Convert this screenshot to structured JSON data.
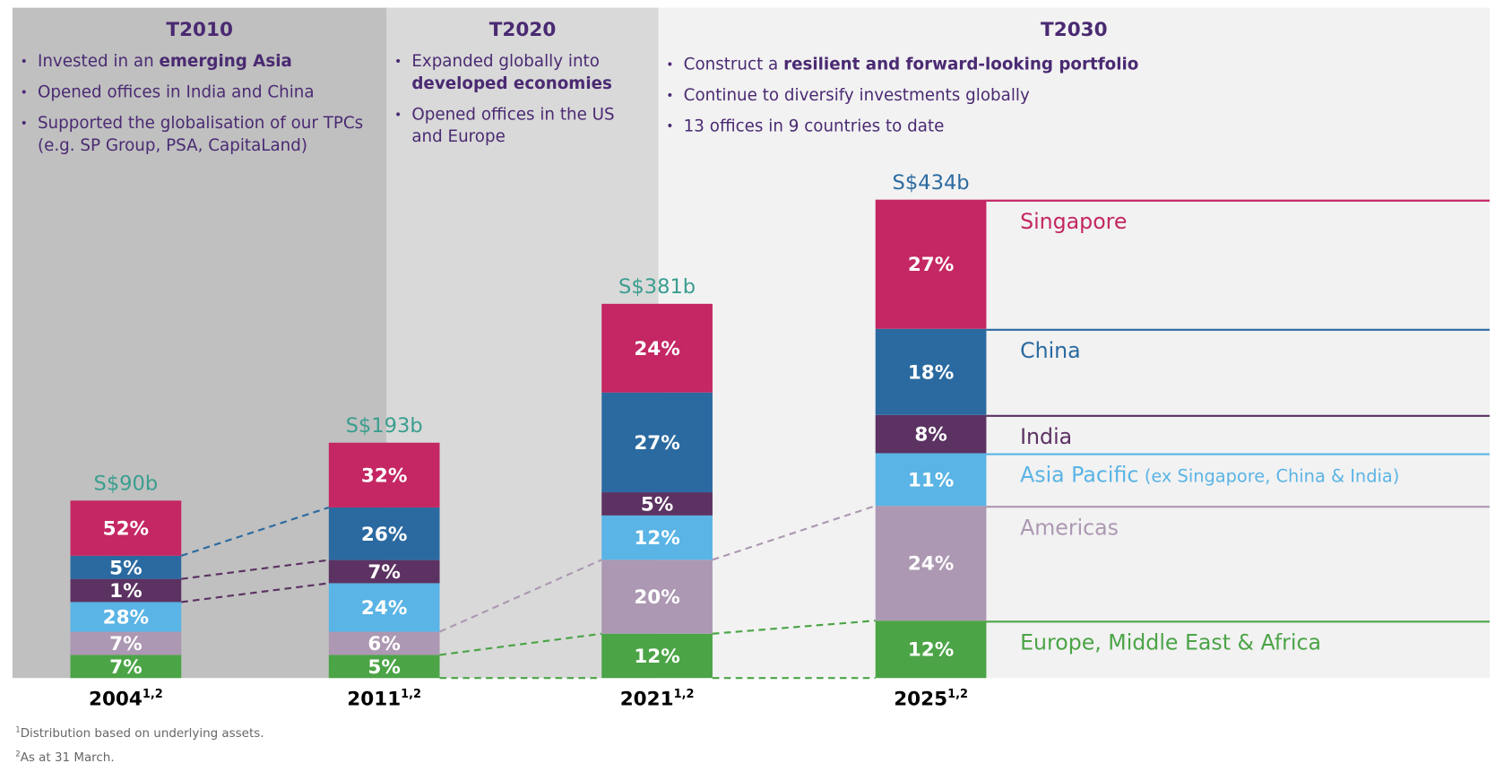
{
  "phases": [
    {
      "title": "T2010",
      "bullets": [
        [
          {
            "t": "Invested in an "
          },
          {
            "t": "emerging Asia",
            "b": true
          }
        ],
        [
          {
            "t": "Opened offices in India and China"
          }
        ],
        [
          {
            "t": "Supported the globalisation of our TPCs (e.g. SP Group, PSA, CapitaLand)"
          }
        ]
      ]
    },
    {
      "title": "T2020",
      "bullets": [
        [
          {
            "t": "Expanded globally into "
          },
          {
            "t": "developed economies",
            "b": true
          }
        ],
        [
          {
            "t": "Opened offices in the US and Europe"
          }
        ]
      ]
    },
    {
      "title": "T2030",
      "bullets": [
        [
          {
            "t": "Construct a "
          },
          {
            "t": "resilient and forward-looking portfolio",
            "b": true
          }
        ],
        [
          {
            "t": "Continue to diversify investments globally"
          }
        ],
        [
          {
            "t": "13 offices in 9 countries to date"
          }
        ]
      ]
    }
  ],
  "colors": {
    "panel_t2010": "#c0c0c0",
    "panel_t2020": "#d9d9d9",
    "panel_t2030": "#f2f2f2",
    "total_label": "#3a9e8f",
    "total_label_latest": "#2b6aa0"
  },
  "chart_data": {
    "type": "bar",
    "stacked": true,
    "unit": "%",
    "categories": [
      "2004",
      "2011",
      "2021",
      "2025"
    ],
    "category_superscript": "1,2",
    "totals": [
      "S$90b",
      "S$193b",
      "S$381b",
      "S$434b"
    ],
    "series": [
      {
        "name": "Europe, Middle East & Africa",
        "color": "#4ba446",
        "values": [
          7,
          5,
          12,
          12
        ]
      },
      {
        "name": "Americas",
        "color": "#ac98b2",
        "values": [
          7,
          6,
          20,
          24
        ]
      },
      {
        "name": "Asia Pacific",
        "name_suffix": "(ex Singapore, China & India)",
        "color": "#5ab4e5",
        "values": [
          28,
          24,
          12,
          11
        ]
      },
      {
        "name": "India",
        "color": "#5b3262",
        "values": [
          1,
          7,
          5,
          8
        ]
      },
      {
        "name": "China",
        "color": "#2b6aa0",
        "values": [
          5,
          26,
          27,
          18
        ]
      },
      {
        "name": "Singapore",
        "color": "#c42763",
        "values": [
          52,
          32,
          24,
          27
        ]
      }
    ],
    "legend_placement": "right",
    "grid": false
  },
  "footnotes": [
    {
      "mark": "1",
      "text": "Distribution based on underlying assets."
    },
    {
      "mark": "2",
      "text": "As at 31 March."
    }
  ]
}
